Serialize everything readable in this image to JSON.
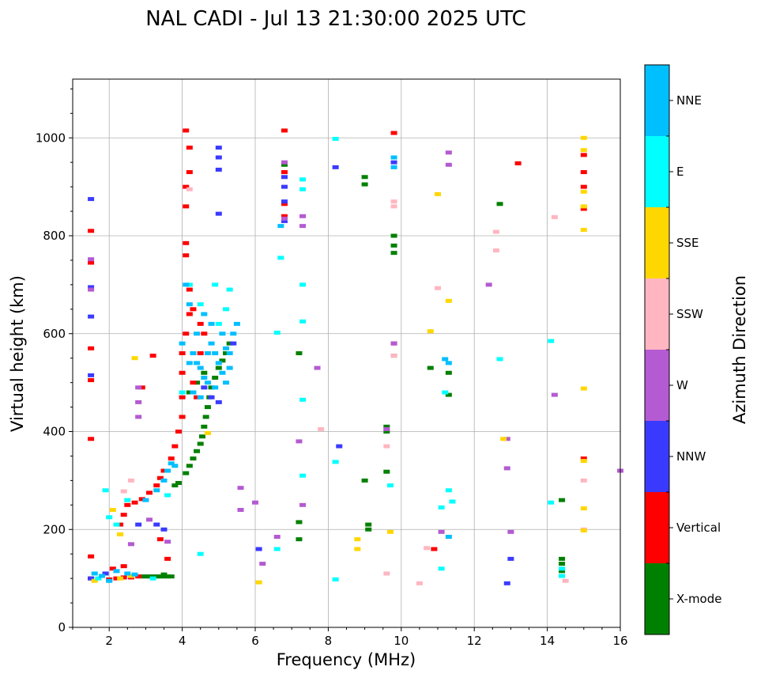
{
  "chart_data": {
    "type": "scatter",
    "title": "NAL CADI - Jul 13 21:30:00 2025 UTC",
    "xlabel": "Frequency (MHz)",
    "ylabel": "Virtual height (km)",
    "xlim": [
      1,
      16
    ],
    "ylim": [
      0,
      1120
    ],
    "xticks": [
      2,
      4,
      6,
      8,
      10,
      12,
      14,
      16
    ],
    "yticks": [
      0,
      200,
      400,
      600,
      800,
      1000
    ],
    "grid": true,
    "colorbar": {
      "label": "Azimuth Direction",
      "categories": [
        {
          "name": "X-mode",
          "color": "#008000"
        },
        {
          "name": "Vertical",
          "color": "#ff0000"
        },
        {
          "name": "NNW",
          "color": "#3a3aff"
        },
        {
          "name": "W",
          "color": "#b45ad2"
        },
        {
          "name": "SSW",
          "color": "#ffb6c1"
        },
        {
          "name": "SSE",
          "color": "#ffd700"
        },
        {
          "name": "E",
          "color": "#00ffff"
        },
        {
          "name": "NNE",
          "color": "#00bfff"
        }
      ]
    },
    "series": [
      {
        "name": "X-mode",
        "points": [
          [
            2.9,
            104
          ],
          [
            3.0,
            104
          ],
          [
            3.1,
            104
          ],
          [
            3.2,
            104
          ],
          [
            3.3,
            104
          ],
          [
            3.4,
            104
          ],
          [
            3.5,
            104
          ],
          [
            3.6,
            104
          ],
          [
            3.7,
            104
          ],
          [
            3.5,
            108
          ],
          [
            3.8,
            290
          ],
          [
            3.9,
            295
          ],
          [
            4.1,
            315
          ],
          [
            4.2,
            330
          ],
          [
            4.3,
            345
          ],
          [
            4.4,
            360
          ],
          [
            4.5,
            375
          ],
          [
            4.55,
            390
          ],
          [
            4.6,
            410
          ],
          [
            4.65,
            430
          ],
          [
            4.7,
            450
          ],
          [
            4.75,
            470
          ],
          [
            4.8,
            490
          ],
          [
            4.9,
            510
          ],
          [
            5.0,
            530
          ],
          [
            5.1,
            545
          ],
          [
            5.2,
            560
          ],
          [
            4.2,
            480
          ],
          [
            4.4,
            500
          ],
          [
            4.6,
            520
          ],
          [
            5.3,
            580
          ],
          [
            6.8,
            945
          ],
          [
            9.0,
            920
          ],
          [
            9.0,
            905
          ],
          [
            9.0,
            300
          ],
          [
            9.1,
            210
          ],
          [
            9.1,
            200
          ],
          [
            9.8,
            800
          ],
          [
            9.8,
            780
          ],
          [
            9.8,
            765
          ],
          [
            9.8,
            555
          ],
          [
            9.6,
            410
          ],
          [
            9.6,
            400
          ],
          [
            9.6,
            318
          ],
          [
            7.2,
            560
          ],
          [
            7.2,
            215
          ],
          [
            7.2,
            180
          ],
          [
            10.8,
            530
          ],
          [
            11.3,
            520
          ],
          [
            11.3,
            475
          ],
          [
            12.7,
            865
          ],
          [
            14.4,
            260
          ],
          [
            14.4,
            140
          ],
          [
            14.4,
            130
          ],
          [
            14.4,
            115
          ]
        ]
      },
      {
        "name": "Vertical",
        "points": [
          [
            1.5,
            810
          ],
          [
            1.5,
            745
          ],
          [
            1.5,
            570
          ],
          [
            1.5,
            505
          ],
          [
            1.5,
            385
          ],
          [
            1.5,
            145
          ],
          [
            1.5,
            100
          ],
          [
            2.0,
            98
          ],
          [
            2.2,
            100
          ],
          [
            2.4,
            102
          ],
          [
            2.6,
            102
          ],
          [
            2.8,
            104
          ],
          [
            2.1,
            120
          ],
          [
            2.3,
            210
          ],
          [
            2.4,
            230
          ],
          [
            2.5,
            250
          ],
          [
            2.7,
            255
          ],
          [
            2.9,
            262
          ],
          [
            3.1,
            275
          ],
          [
            3.3,
            290
          ],
          [
            3.4,
            305
          ],
          [
            3.5,
            320
          ],
          [
            3.7,
            345
          ],
          [
            3.8,
            370
          ],
          [
            3.9,
            400
          ],
          [
            4.0,
            430
          ],
          [
            4.0,
            470
          ],
          [
            4.0,
            520
          ],
          [
            4.0,
            560
          ],
          [
            4.1,
            600
          ],
          [
            4.2,
            640
          ],
          [
            4.2,
            690
          ],
          [
            4.1,
            760
          ],
          [
            4.1,
            785
          ],
          [
            4.1,
            860
          ],
          [
            4.1,
            900
          ],
          [
            4.1,
            1015
          ],
          [
            4.2,
            980
          ],
          [
            4.2,
            930
          ],
          [
            4.3,
            500
          ],
          [
            4.4,
            470
          ],
          [
            4.5,
            560
          ],
          [
            4.6,
            600
          ],
          [
            4.3,
            650
          ],
          [
            4.5,
            620
          ],
          [
            6.8,
            1015
          ],
          [
            6.8,
            930
          ],
          [
            6.8,
            865
          ],
          [
            6.8,
            840
          ],
          [
            9.8,
            1010
          ],
          [
            9.8,
            580
          ],
          [
            10.9,
            160
          ],
          [
            13.2,
            948
          ],
          [
            15.0,
            965
          ],
          [
            15.0,
            930
          ],
          [
            15.0,
            900
          ],
          [
            15.0,
            855
          ],
          [
            15.0,
            345
          ],
          [
            2.9,
            490
          ],
          [
            3.2,
            555
          ],
          [
            3.4,
            180
          ],
          [
            3.6,
            140
          ],
          [
            2.4,
            125
          ]
        ]
      },
      {
        "name": "NNW",
        "points": [
          [
            1.5,
            875
          ],
          [
            1.5,
            695
          ],
          [
            1.5,
            635
          ],
          [
            1.5,
            515
          ],
          [
            1.5,
            100
          ],
          [
            5.0,
            980
          ],
          [
            5.0,
            960
          ],
          [
            5.0,
            935
          ],
          [
            5.0,
            845
          ],
          [
            6.8,
            920
          ],
          [
            6.8,
            900
          ],
          [
            6.8,
            870
          ],
          [
            6.8,
            830
          ],
          [
            8.2,
            940
          ],
          [
            8.3,
            370
          ],
          [
            9.8,
            950
          ],
          [
            12.9,
            90
          ],
          [
            13.0,
            140
          ],
          [
            4.6,
            490
          ],
          [
            4.8,
            470
          ],
          [
            2.8,
            210
          ],
          [
            3.3,
            210
          ],
          [
            3.5,
            200
          ],
          [
            6.1,
            160
          ],
          [
            1.9,
            110
          ],
          [
            5.0,
            460
          ],
          [
            5.4,
            580
          ]
        ]
      },
      {
        "name": "W",
        "points": [
          [
            1.5,
            752
          ],
          [
            1.5,
            690
          ],
          [
            2.8,
            490
          ],
          [
            2.8,
            460
          ],
          [
            2.8,
            430
          ],
          [
            6.6,
            185
          ],
          [
            6.2,
            130
          ],
          [
            6.0,
            255
          ],
          [
            5.6,
            240
          ],
          [
            5.6,
            285
          ],
          [
            6.8,
            950
          ],
          [
            6.8,
            835
          ],
          [
            7.3,
            840
          ],
          [
            7.3,
            820
          ],
          [
            7.3,
            250
          ],
          [
            7.7,
            530
          ],
          [
            9.6,
            405
          ],
          [
            9.8,
            580
          ],
          [
            11.3,
            970
          ],
          [
            11.3,
            945
          ],
          [
            12.4,
            700
          ],
          [
            12.9,
            325
          ],
          [
            12.9,
            385
          ],
          [
            13.0,
            195
          ],
          [
            11.1,
            195
          ],
          [
            14.2,
            475
          ],
          [
            16.0,
            320
          ],
          [
            3.1,
            220
          ],
          [
            3.6,
            175
          ],
          [
            2.6,
            170
          ],
          [
            7.2,
            380
          ]
        ]
      },
      {
        "name": "SSW",
        "points": [
          [
            9.8,
            870
          ],
          [
            9.8,
            860
          ],
          [
            9.8,
            555
          ],
          [
            9.6,
            370
          ],
          [
            9.6,
            110
          ],
          [
            11.0,
            693
          ],
          [
            12.6,
            808
          ],
          [
            12.6,
            770
          ],
          [
            14.2,
            838
          ],
          [
            14.5,
            95
          ],
          [
            10.5,
            90
          ],
          [
            10.7,
            162
          ],
          [
            15.0,
            300
          ],
          [
            15.0,
            200
          ],
          [
            7.8,
            405
          ],
          [
            4.2,
            895
          ],
          [
            2.6,
            300
          ],
          [
            2.4,
            278
          ]
        ]
      },
      {
        "name": "SSE",
        "points": [
          [
            1.6,
            95
          ],
          [
            2.3,
            100
          ],
          [
            2.6,
            105
          ],
          [
            2.1,
            240
          ],
          [
            2.3,
            190
          ],
          [
            2.7,
            550
          ],
          [
            8.8,
            180
          ],
          [
            8.8,
            160
          ],
          [
            10.8,
            605
          ],
          [
            11.0,
            885
          ],
          [
            11.3,
            667
          ],
          [
            12.8,
            385
          ],
          [
            15.0,
            1000
          ],
          [
            15.0,
            975
          ],
          [
            15.0,
            890
          ],
          [
            15.0,
            860
          ],
          [
            15.0,
            812
          ],
          [
            15.0,
            488
          ],
          [
            15.0,
            340
          ],
          [
            15.0,
            243
          ],
          [
            15.0,
            198
          ],
          [
            6.1,
            92
          ],
          [
            4.7,
            397
          ],
          [
            9.7,
            195
          ]
        ]
      },
      {
        "name": "E",
        "points": [
          [
            1.7,
            100
          ],
          [
            1.9,
            280
          ],
          [
            2.0,
            225
          ],
          [
            2.2,
            210
          ],
          [
            2.5,
            260
          ],
          [
            3.6,
            270
          ],
          [
            4.0,
            480
          ],
          [
            4.2,
            700
          ],
          [
            4.5,
            660
          ],
          [
            4.9,
            700
          ],
          [
            5.0,
            620
          ],
          [
            5.2,
            650
          ],
          [
            5.3,
            690
          ],
          [
            6.6,
            160
          ],
          [
            6.6,
            602
          ],
          [
            7.3,
            915
          ],
          [
            7.3,
            895
          ],
          [
            7.3,
            700
          ],
          [
            7.3,
            625
          ],
          [
            7.3,
            465
          ],
          [
            7.3,
            310
          ],
          [
            8.2,
            998
          ],
          [
            8.2,
            338
          ],
          [
            8.2,
            98
          ],
          [
            9.7,
            290
          ],
          [
            11.1,
            245
          ],
          [
            11.1,
            120
          ],
          [
            11.2,
            480
          ],
          [
            11.3,
            280
          ],
          [
            11.4,
            257
          ],
          [
            12.7,
            548
          ],
          [
            14.1,
            585
          ],
          [
            14.1,
            255
          ],
          [
            14.4,
            105
          ],
          [
            14.4,
            120
          ],
          [
            6.7,
            755
          ],
          [
            4.5,
            150
          ],
          [
            3.2,
            100
          ]
        ]
      },
      {
        "name": "NNE",
        "points": [
          [
            1.6,
            110
          ],
          [
            1.8,
            105
          ],
          [
            2.0,
            95
          ],
          [
            2.2,
            115
          ],
          [
            2.5,
            110
          ],
          [
            2.7,
            108
          ],
          [
            3.0,
            260
          ],
          [
            3.3,
            280
          ],
          [
            3.5,
            300
          ],
          [
            3.6,
            320
          ],
          [
            3.7,
            335
          ],
          [
            4.3,
            560
          ],
          [
            4.4,
            540
          ],
          [
            4.5,
            530
          ],
          [
            4.6,
            510
          ],
          [
            4.7,
            560
          ],
          [
            4.8,
            580
          ],
          [
            4.9,
            560
          ],
          [
            5.0,
            540
          ],
          [
            5.1,
            520
          ],
          [
            5.2,
            500
          ],
          [
            5.3,
            560
          ],
          [
            5.4,
            600
          ],
          [
            5.5,
            620
          ],
          [
            5.3,
            530
          ],
          [
            5.1,
            600
          ],
          [
            4.8,
            620
          ],
          [
            4.6,
            640
          ],
          [
            4.4,
            600
          ],
          [
            4.2,
            540
          ],
          [
            4.3,
            480
          ],
          [
            4.5,
            470
          ],
          [
            4.7,
            500
          ],
          [
            4.9,
            490
          ],
          [
            5.2,
            570
          ],
          [
            6.7,
            820
          ],
          [
            9.8,
            940
          ],
          [
            9.8,
            960
          ],
          [
            11.3,
            540
          ],
          [
            11.2,
            548
          ],
          [
            11.3,
            185
          ],
          [
            4.1,
            700
          ],
          [
            4.2,
            660
          ],
          [
            3.8,
            330
          ],
          [
            4.0,
            580
          ]
        ]
      }
    ]
  }
}
